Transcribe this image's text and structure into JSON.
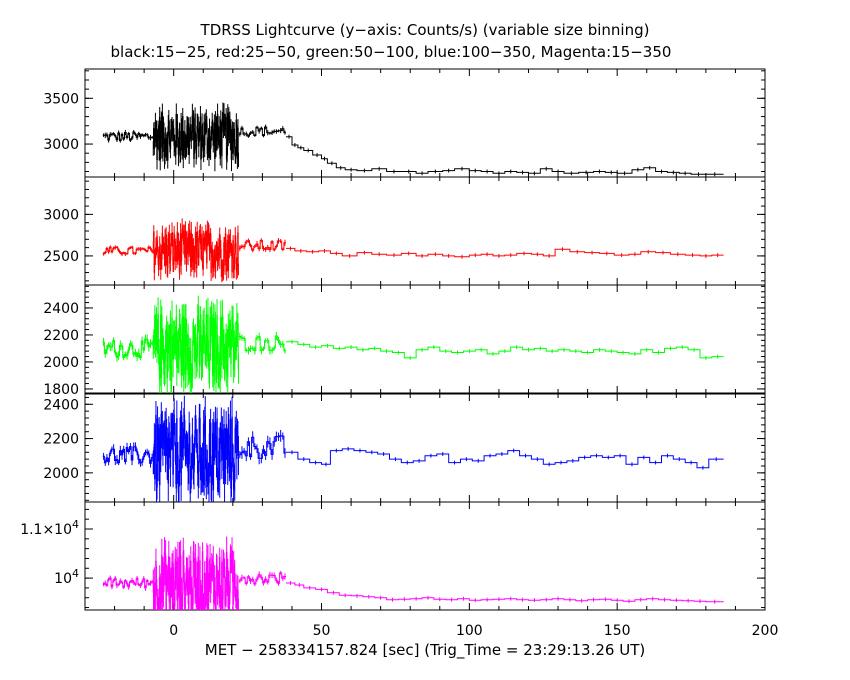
{
  "chart_data": {
    "type": "line",
    "title": "TDRSS Lightcurve (y−axis: Counts/s) (variable size binning)",
    "subtitle": "black:15−25, red:25−50, green:50−100, blue:100−350, Magenta:15−350",
    "xlabel": "MET − 258334157.824 [sec] (Trig_Time = 23:29:13.26 UT)",
    "xlim": [
      -30,
      200
    ],
    "x_ticks": [
      0,
      50,
      100,
      150,
      200
    ],
    "x_tick_labels": [
      "0",
      "50",
      "100",
      "150",
      "200"
    ],
    "panels": [
      {
        "name": "15-25",
        "color": "#000000",
        "ylim": [
          2640,
          3820
        ],
        "y_ticks": [
          3000,
          3500
        ],
        "y_tick_labels": [
          "3000",
          "3500"
        ],
        "segments": [
          {
            "x_start": -24,
            "x_end": -7,
            "points": 30,
            "base": 3080,
            "noise": 55
          },
          {
            "x_start": -7,
            "x_end": 22,
            "points": 160,
            "base": 3080,
            "noise": 260
          },
          {
            "x_start": 22,
            "x_end": 38,
            "points": 22,
            "base": 3140,
            "noise": 55
          }
        ],
        "steps": [
          {
            "x": 38,
            "y": 3080
          },
          {
            "x": 40,
            "y": 2990
          },
          {
            "x": 42,
            "y": 2960
          },
          {
            "x": 44,
            "y": 2930
          },
          {
            "x": 47,
            "y": 2880
          },
          {
            "x": 50,
            "y": 2840
          },
          {
            "x": 52,
            "y": 2790
          },
          {
            "x": 55,
            "y": 2740
          },
          {
            "x": 58,
            "y": 2720
          },
          {
            "x": 62,
            "y": 2710
          },
          {
            "x": 67,
            "y": 2730
          },
          {
            "x": 72,
            "y": 2700
          },
          {
            "x": 77,
            "y": 2700
          },
          {
            "x": 82,
            "y": 2680
          },
          {
            "x": 86,
            "y": 2700
          },
          {
            "x": 91,
            "y": 2710
          },
          {
            "x": 95,
            "y": 2730
          },
          {
            "x": 100,
            "y": 2710
          },
          {
            "x": 104,
            "y": 2700
          },
          {
            "x": 108,
            "y": 2680
          },
          {
            "x": 112,
            "y": 2700
          },
          {
            "x": 116,
            "y": 2690
          },
          {
            "x": 120,
            "y": 2680
          },
          {
            "x": 124,
            "y": 2730
          },
          {
            "x": 128,
            "y": 2700
          },
          {
            "x": 132,
            "y": 2680
          },
          {
            "x": 137,
            "y": 2690
          },
          {
            "x": 142,
            "y": 2700
          },
          {
            "x": 146,
            "y": 2690
          },
          {
            "x": 150,
            "y": 2680
          },
          {
            "x": 155,
            "y": 2720
          },
          {
            "x": 159,
            "y": 2740
          },
          {
            "x": 163,
            "y": 2700
          },
          {
            "x": 167,
            "y": 2690
          },
          {
            "x": 171,
            "y": 2680
          },
          {
            "x": 175,
            "y": 2670
          },
          {
            "x": 180,
            "y": 2670
          },
          {
            "x": 186,
            "y": 2670
          }
        ]
      },
      {
        "name": "25-50",
        "color": "#ff0000",
        "ylim": [
          2150,
          3450
        ],
        "y_ticks": [
          2500,
          3000
        ],
        "y_tick_labels": [
          "2500",
          "3000"
        ],
        "segments": [
          {
            "x_start": -24,
            "x_end": -7,
            "points": 30,
            "base": 2560,
            "noise": 50
          },
          {
            "x_start": -7,
            "x_end": 22,
            "points": 160,
            "base": 2560,
            "noise": 260
          },
          {
            "x_start": 22,
            "x_end": 38,
            "points": 22,
            "base": 2620,
            "noise": 70
          }
        ],
        "steps": [
          {
            "x": 38,
            "y": 2590
          },
          {
            "x": 41,
            "y": 2560
          },
          {
            "x": 45,
            "y": 2550
          },
          {
            "x": 49,
            "y": 2560
          },
          {
            "x": 53,
            "y": 2530
          },
          {
            "x": 57,
            "y": 2500
          },
          {
            "x": 62,
            "y": 2540
          },
          {
            "x": 67,
            "y": 2520
          },
          {
            "x": 72,
            "y": 2510
          },
          {
            "x": 77,
            "y": 2530
          },
          {
            "x": 82,
            "y": 2500
          },
          {
            "x": 86,
            "y": 2520
          },
          {
            "x": 91,
            "y": 2500
          },
          {
            "x": 95,
            "y": 2490
          },
          {
            "x": 100,
            "y": 2510
          },
          {
            "x": 104,
            "y": 2520
          },
          {
            "x": 108,
            "y": 2500
          },
          {
            "x": 112,
            "y": 2510
          },
          {
            "x": 116,
            "y": 2530
          },
          {
            "x": 121,
            "y": 2520
          },
          {
            "x": 125,
            "y": 2500
          },
          {
            "x": 129,
            "y": 2580
          },
          {
            "x": 134,
            "y": 2550
          },
          {
            "x": 139,
            "y": 2540
          },
          {
            "x": 144,
            "y": 2530
          },
          {
            "x": 149,
            "y": 2510
          },
          {
            "x": 154,
            "y": 2520
          },
          {
            "x": 158,
            "y": 2550
          },
          {
            "x": 163,
            "y": 2540
          },
          {
            "x": 168,
            "y": 2520
          },
          {
            "x": 173,
            "y": 2510
          },
          {
            "x": 178,
            "y": 2500
          },
          {
            "x": 182,
            "y": 2510
          },
          {
            "x": 186,
            "y": 2510
          }
        ]
      },
      {
        "name": "50-100",
        "color": "#00ff00",
        "ylim": [
          1770,
          2570
        ],
        "y_ticks": [
          1800,
          2000,
          2200,
          2400
        ],
        "y_tick_labels": [
          "1800",
          "2000",
          "2200",
          "2400"
        ],
        "segments": [
          {
            "x_start": -24,
            "x_end": -7,
            "points": 30,
            "base": 2100,
            "noise": 70
          },
          {
            "x_start": -7,
            "x_end": 22,
            "points": 160,
            "base": 2110,
            "noise": 260
          },
          {
            "x_start": 22,
            "x_end": 38,
            "points": 22,
            "base": 2140,
            "noise": 60
          }
        ],
        "steps": [
          {
            "x": 38,
            "y": 2150
          },
          {
            "x": 42,
            "y": 2130
          },
          {
            "x": 46,
            "y": 2110
          },
          {
            "x": 50,
            "y": 2120
          },
          {
            "x": 54,
            "y": 2100
          },
          {
            "x": 58,
            "y": 2110
          },
          {
            "x": 62,
            "y": 2090
          },
          {
            "x": 66,
            "y": 2100
          },
          {
            "x": 70,
            "y": 2080
          },
          {
            "x": 74,
            "y": 2070
          },
          {
            "x": 78,
            "y": 2030
          },
          {
            "x": 82,
            "y": 2090
          },
          {
            "x": 86,
            "y": 2110
          },
          {
            "x": 90,
            "y": 2080
          },
          {
            "x": 94,
            "y": 2070
          },
          {
            "x": 98,
            "y": 2080
          },
          {
            "x": 102,
            "y": 2090
          },
          {
            "x": 106,
            "y": 2060
          },
          {
            "x": 110,
            "y": 2080
          },
          {
            "x": 114,
            "y": 2110
          },
          {
            "x": 118,
            "y": 2090
          },
          {
            "x": 122,
            "y": 2100
          },
          {
            "x": 126,
            "y": 2080
          },
          {
            "x": 130,
            "y": 2090
          },
          {
            "x": 134,
            "y": 2080
          },
          {
            "x": 138,
            "y": 2070
          },
          {
            "x": 142,
            "y": 2090
          },
          {
            "x": 146,
            "y": 2080
          },
          {
            "x": 150,
            "y": 2070
          },
          {
            "x": 154,
            "y": 2060
          },
          {
            "x": 158,
            "y": 2090
          },
          {
            "x": 162,
            "y": 2070
          },
          {
            "x": 166,
            "y": 2100
          },
          {
            "x": 170,
            "y": 2110
          },
          {
            "x": 174,
            "y": 2090
          },
          {
            "x": 178,
            "y": 2030
          },
          {
            "x": 182,
            "y": 2040
          },
          {
            "x": 186,
            "y": 2040
          }
        ]
      },
      {
        "name": "100-350",
        "color": "#0000ff",
        "ylim": [
          1830,
          2460
        ],
        "y_ticks": [
          2000,
          2200,
          2400
        ],
        "y_tick_labels": [
          "2000",
          "2200",
          "2400"
        ],
        "segments": [
          {
            "x_start": -24,
            "x_end": -7,
            "points": 30,
            "base": 2100,
            "noise": 55
          },
          {
            "x_start": -7,
            "x_end": 22,
            "points": 160,
            "base": 2110,
            "noise": 230
          },
          {
            "x_start": 22,
            "x_end": 38,
            "points": 22,
            "base": 2150,
            "noise": 70
          }
        ],
        "steps": [
          {
            "x": 38,
            "y": 2120
          },
          {
            "x": 42,
            "y": 2080
          },
          {
            "x": 46,
            "y": 2060
          },
          {
            "x": 50,
            "y": 2050
          },
          {
            "x": 53,
            "y": 2130
          },
          {
            "x": 57,
            "y": 2140
          },
          {
            "x": 61,
            "y": 2130
          },
          {
            "x": 65,
            "y": 2120
          },
          {
            "x": 69,
            "y": 2110
          },
          {
            "x": 73,
            "y": 2080
          },
          {
            "x": 77,
            "y": 2060
          },
          {
            "x": 81,
            "y": 2070
          },
          {
            "x": 85,
            "y": 2100
          },
          {
            "x": 89,
            "y": 2110
          },
          {
            "x": 93,
            "y": 2060
          },
          {
            "x": 97,
            "y": 2080
          },
          {
            "x": 101,
            "y": 2070
          },
          {
            "x": 105,
            "y": 2100
          },
          {
            "x": 109,
            "y": 2110
          },
          {
            "x": 113,
            "y": 2130
          },
          {
            "x": 117,
            "y": 2100
          },
          {
            "x": 121,
            "y": 2080
          },
          {
            "x": 125,
            "y": 2050
          },
          {
            "x": 129,
            "y": 2060
          },
          {
            "x": 133,
            "y": 2070
          },
          {
            "x": 137,
            "y": 2090
          },
          {
            "x": 141,
            "y": 2100
          },
          {
            "x": 145,
            "y": 2090
          },
          {
            "x": 149,
            "y": 2100
          },
          {
            "x": 153,
            "y": 2050
          },
          {
            "x": 157,
            "y": 2090
          },
          {
            "x": 161,
            "y": 2060
          },
          {
            "x": 165,
            "y": 2100
          },
          {
            "x": 169,
            "y": 2080
          },
          {
            "x": 173,
            "y": 2060
          },
          {
            "x": 177,
            "y": 2030
          },
          {
            "x": 181,
            "y": 2080
          },
          {
            "x": 186,
            "y": 2050
          }
        ]
      },
      {
        "name": "15-350",
        "color": "#ff00ff",
        "ylim": [
          9350,
          11550
        ],
        "y_ticks": [
          10000,
          11000
        ],
        "y_tick_labels": [
          "10^4",
          "1.1×10^4"
        ],
        "segments": [
          {
            "x_start": -24,
            "x_end": -7,
            "points": 30,
            "base": 9900,
            "noise": 110
          },
          {
            "x_start": -7,
            "x_end": 22,
            "points": 160,
            "base": 9900,
            "noise": 650
          },
          {
            "x_start": 22,
            "x_end": 38,
            "points": 22,
            "base": 10000,
            "noise": 120
          }
        ],
        "steps": [
          {
            "x": 38,
            "y": 9900
          },
          {
            "x": 41,
            "y": 9860
          },
          {
            "x": 44,
            "y": 9800
          },
          {
            "x": 48,
            "y": 9770
          },
          {
            "x": 52,
            "y": 9700
          },
          {
            "x": 56,
            "y": 9650
          },
          {
            "x": 60,
            "y": 9640
          },
          {
            "x": 64,
            "y": 9620
          },
          {
            "x": 68,
            "y": 9600
          },
          {
            "x": 72,
            "y": 9560
          },
          {
            "x": 76,
            "y": 9570
          },
          {
            "x": 80,
            "y": 9580
          },
          {
            "x": 84,
            "y": 9600
          },
          {
            "x": 88,
            "y": 9570
          },
          {
            "x": 92,
            "y": 9560
          },
          {
            "x": 96,
            "y": 9580
          },
          {
            "x": 100,
            "y": 9550
          },
          {
            "x": 104,
            "y": 9560
          },
          {
            "x": 108,
            "y": 9570
          },
          {
            "x": 112,
            "y": 9580
          },
          {
            "x": 116,
            "y": 9560
          },
          {
            "x": 120,
            "y": 9550
          },
          {
            "x": 124,
            "y": 9560
          },
          {
            "x": 128,
            "y": 9580
          },
          {
            "x": 132,
            "y": 9560
          },
          {
            "x": 136,
            "y": 9540
          },
          {
            "x": 140,
            "y": 9560
          },
          {
            "x": 144,
            "y": 9570
          },
          {
            "x": 148,
            "y": 9550
          },
          {
            "x": 152,
            "y": 9530
          },
          {
            "x": 156,
            "y": 9560
          },
          {
            "x": 160,
            "y": 9580
          },
          {
            "x": 164,
            "y": 9560
          },
          {
            "x": 168,
            "y": 9550
          },
          {
            "x": 172,
            "y": 9540
          },
          {
            "x": 176,
            "y": 9530
          },
          {
            "x": 180,
            "y": 9520
          },
          {
            "x": 186,
            "y": 9520
          }
        ]
      }
    ]
  }
}
